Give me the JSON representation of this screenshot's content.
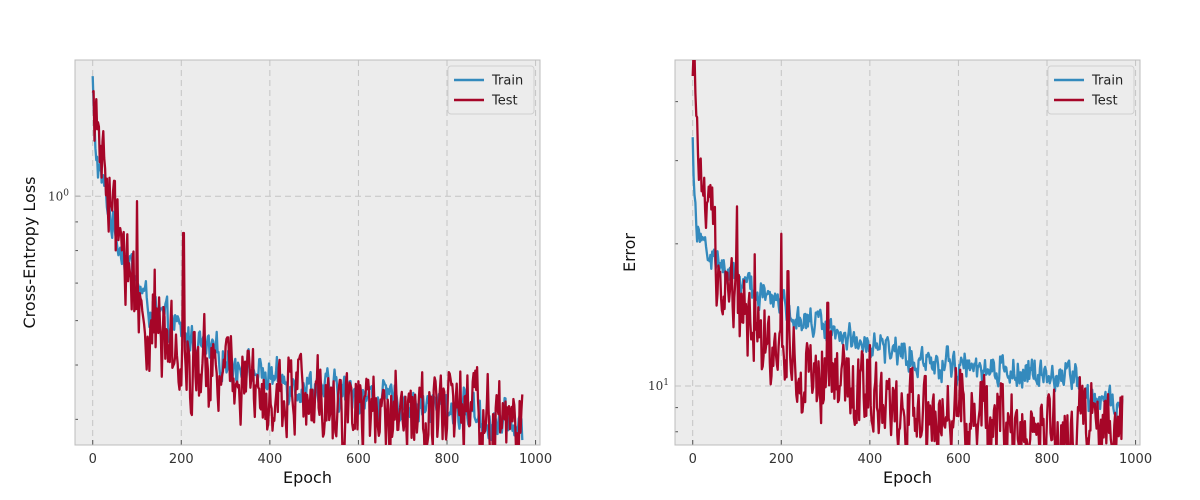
{
  "chart_data": [
    {
      "type": "line",
      "xlabel": "Epoch",
      "ylabel": "Cross-Entropy Loss",
      "yscale": "log",
      "xlim": [
        -40,
        1010
      ],
      "ylim": [
        0.36,
        1.75
      ],
      "xticks": [
        0,
        200,
        400,
        600,
        800,
        1000
      ],
      "yticks": [
        {
          "value": 1.0,
          "label_base": "10",
          "label_exp": "0"
        }
      ],
      "grid": true,
      "legend_position": "top-right",
      "series": [
        {
          "name": "Train",
          "color": "#348ABD",
          "noise": 0.025,
          "points": [
            [
              0,
              1.62
            ],
            [
              3,
              1.32
            ],
            [
              10,
              1.15
            ],
            [
              25,
              1.04
            ],
            [
              50,
              0.86
            ],
            [
              75,
              0.78
            ],
            [
              100,
              0.7
            ],
            [
              125,
              0.64
            ],
            [
              150,
              0.61
            ],
            [
              200,
              0.57
            ],
            [
              250,
              0.535
            ],
            [
              300,
              0.51
            ],
            [
              350,
              0.49
            ],
            [
              400,
              0.475
            ],
            [
              450,
              0.465
            ],
            [
              500,
              0.455
            ],
            [
              550,
              0.447
            ],
            [
              600,
              0.44
            ],
            [
              650,
              0.434
            ],
            [
              700,
              0.428
            ],
            [
              750,
              0.423
            ],
            [
              800,
              0.42
            ],
            [
              860,
              0.416
            ],
            [
              870,
              0.41
            ],
            [
              880,
              0.397
            ],
            [
              970,
              0.392
            ]
          ]
        },
        {
          "name": "Test",
          "color": "#A60628",
          "noise": 0.06,
          "points": [
            [
              0,
              1.4
            ],
            [
              3,
              1.5
            ],
            [
              10,
              1.3
            ],
            [
              25,
              1.07
            ],
            [
              50,
              0.9
            ],
            [
              75,
              0.75
            ],
            [
              100,
              0.66
            ],
            [
              125,
              0.6
            ],
            [
              150,
              0.56
            ],
            [
              200,
              0.525
            ],
            [
              250,
              0.5
            ],
            [
              300,
              0.475
            ],
            [
              350,
              0.46
            ],
            [
              400,
              0.447
            ],
            [
              450,
              0.44
            ],
            [
              500,
              0.435
            ],
            [
              550,
              0.43
            ],
            [
              600,
              0.425
            ],
            [
              650,
              0.424
            ],
            [
              700,
              0.422
            ],
            [
              750,
              0.42
            ],
            [
              800,
              0.418
            ],
            [
              860,
              0.415
            ],
            [
              880,
              0.395
            ],
            [
              970,
              0.392
            ]
          ],
          "spikes": [
            [
              100,
              0.98
            ],
            [
              140,
              0.74
            ],
            [
              205,
              0.86
            ],
            [
              300,
              0.54
            ],
            [
              305,
              0.56
            ],
            [
              350,
              0.53
            ],
            [
              825,
              0.42
            ]
          ]
        }
      ]
    },
    {
      "type": "line",
      "xlabel": "Epoch",
      "ylabel": "Error",
      "yscale": "log",
      "xlim": [
        -40,
        1010
      ],
      "ylim": [
        7.5,
        49
      ],
      "xticks": [
        0,
        200,
        400,
        600,
        800,
        1000
      ],
      "yticks": [
        {
          "value": 10,
          "label_base": "10",
          "label_exp": "1"
        }
      ],
      "grid": true,
      "legend_position": "top-right",
      "series": [
        {
          "name": "Train",
          "color": "#348ABD",
          "noise": 0.025,
          "points": [
            [
              0,
              33
            ],
            [
              3,
              27
            ],
            [
              10,
              22
            ],
            [
              25,
              20
            ],
            [
              50,
              18.5
            ],
            [
              75,
              17.5
            ],
            [
              100,
              17
            ],
            [
              150,
              15.8
            ],
            [
              200,
              14.8
            ],
            [
              250,
              14
            ],
            [
              300,
              13.3
            ],
            [
              350,
              12.8
            ],
            [
              400,
              12.3
            ],
            [
              450,
              11.9
            ],
            [
              500,
              11.6
            ],
            [
              550,
              11.3
            ],
            [
              600,
              11.1
            ],
            [
              650,
              10.9
            ],
            [
              700,
              10.8
            ],
            [
              750,
              10.7
            ],
            [
              800,
              10.55
            ],
            [
              860,
              10.4
            ],
            [
              870,
              10.3
            ],
            [
              878,
              9.2
            ],
            [
              970,
              9.1
            ]
          ]
        },
        {
          "name": "Test",
          "color": "#A60628",
          "noise": 0.07,
          "points": [
            [
              0,
              40
            ],
            [
              3,
              44
            ],
            [
              10,
              30
            ],
            [
              25,
              24
            ],
            [
              50,
              19
            ],
            [
              75,
              17
            ],
            [
              100,
              15
            ],
            [
              150,
              13
            ],
            [
              200,
              11.8
            ],
            [
              250,
              11
            ],
            [
              300,
              10.4
            ],
            [
              350,
              9.9
            ],
            [
              400,
              9.4
            ],
            [
              450,
              9.1
            ],
            [
              500,
              8.9
            ],
            [
              550,
              8.75
            ],
            [
              600,
              8.6
            ],
            [
              650,
              8.5
            ],
            [
              700,
              8.4
            ],
            [
              750,
              8.35
            ],
            [
              800,
              8.3
            ],
            [
              850,
              8.25
            ],
            [
              900,
              8.2
            ],
            [
              970,
              8.2
            ]
          ],
          "spikes": [
            [
              100,
              24
            ],
            [
              140,
              19
            ],
            [
              200,
              21
            ],
            [
              215,
              17.5
            ],
            [
              305,
              15
            ],
            [
              400,
              12.2
            ],
            [
              525,
              10.5
            ]
          ]
        }
      ]
    }
  ]
}
